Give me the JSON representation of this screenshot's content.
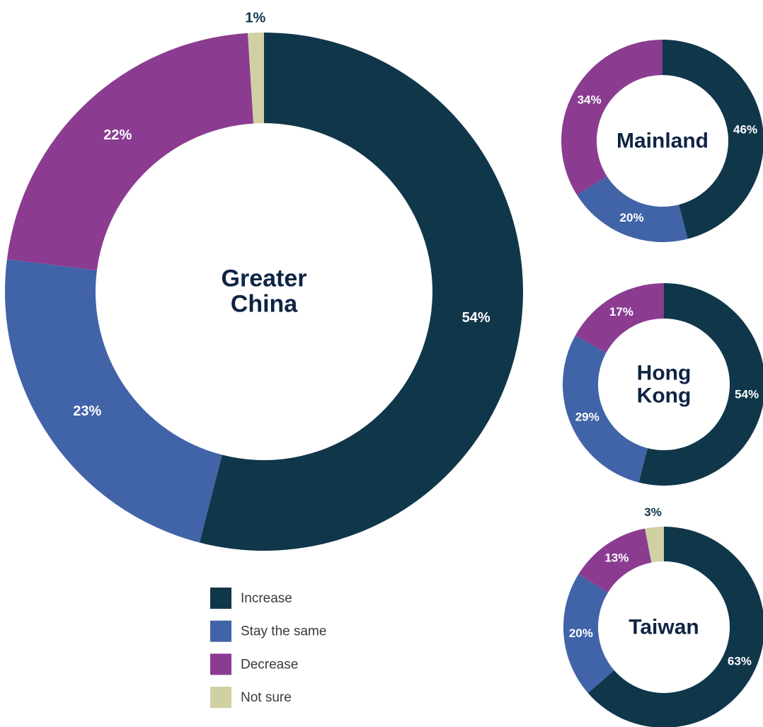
{
  "chart_data": [
    {
      "type": "pie",
      "title": "Greater China",
      "categories": [
        "Increase",
        "Stay the same",
        "Decrease",
        "Not sure"
      ],
      "values": [
        54,
        23,
        22,
        1
      ],
      "value_labels": [
        "54%",
        "23%",
        "22%",
        "1%"
      ],
      "colors": [
        "#10364a",
        "#4163a8",
        "#8b3c91",
        "#d1d0a3"
      ]
    },
    {
      "type": "pie",
      "title": "Mainland",
      "categories": [
        "Increase",
        "Stay the same",
        "Decrease"
      ],
      "values": [
        46,
        20,
        34
      ],
      "value_labels": [
        "46%",
        "20%",
        "34%"
      ],
      "colors": [
        "#10364a",
        "#4163a8",
        "#8b3c91"
      ]
    },
    {
      "type": "pie",
      "title": "Hong Kong",
      "categories": [
        "Increase",
        "Stay the same",
        "Decrease"
      ],
      "values": [
        54,
        29,
        17
      ],
      "value_labels": [
        "54%",
        "29%",
        "17%"
      ],
      "colors": [
        "#10364a",
        "#4163a8",
        "#8b3c91"
      ]
    },
    {
      "type": "pie",
      "title": "Taiwan",
      "categories": [
        "Increase",
        "Stay the same",
        "Decrease",
        "Not sure"
      ],
      "values": [
        63,
        20,
        13,
        3
      ],
      "value_labels": [
        "63%",
        "20%",
        "13%",
        "3%"
      ],
      "colors": [
        "#10364a",
        "#4163a8",
        "#8b3c91",
        "#d1d0a3"
      ]
    }
  ]
}
